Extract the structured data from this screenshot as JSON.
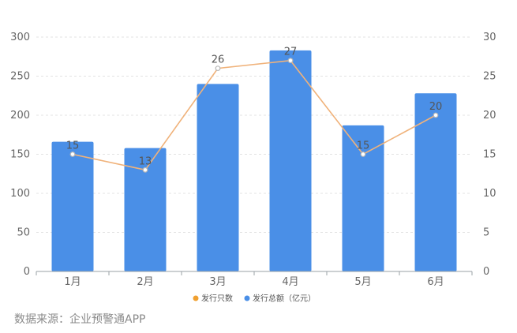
{
  "chart_data": {
    "type": "bar",
    "categories": [
      "1月",
      "2月",
      "3月",
      "4月",
      "5月",
      "6月"
    ],
    "series": [
      {
        "name": "发行总额（亿元）",
        "type": "bar",
        "axis": "left",
        "values": [
          166,
          158,
          240,
          283,
          187,
          228
        ],
        "color": "#4a8fe7"
      },
      {
        "name": "发行只数",
        "type": "line",
        "axis": "right",
        "values": [
          15,
          13,
          26,
          27,
          15,
          20
        ],
        "color": "#f0b27a",
        "labels": [
          "15",
          "13",
          "26",
          "27",
          "15",
          "20"
        ]
      }
    ],
    "y_left": {
      "min": 0,
      "max": 300,
      "ticks": [
        "0",
        "50",
        "100",
        "150",
        "200",
        "250",
        "300"
      ]
    },
    "y_right": {
      "min": 0,
      "max": 30,
      "ticks": [
        "0",
        "5",
        "10",
        "15",
        "20",
        "25",
        "30"
      ]
    },
    "grid": true,
    "legend_position": "bottom-center",
    "legend": [
      {
        "label": "发行只数",
        "color": "#f0a030"
      },
      {
        "label": "发行总额（亿元）",
        "color": "#4a8fe7"
      }
    ]
  },
  "source_text": "数据来源：企业预警通APP"
}
